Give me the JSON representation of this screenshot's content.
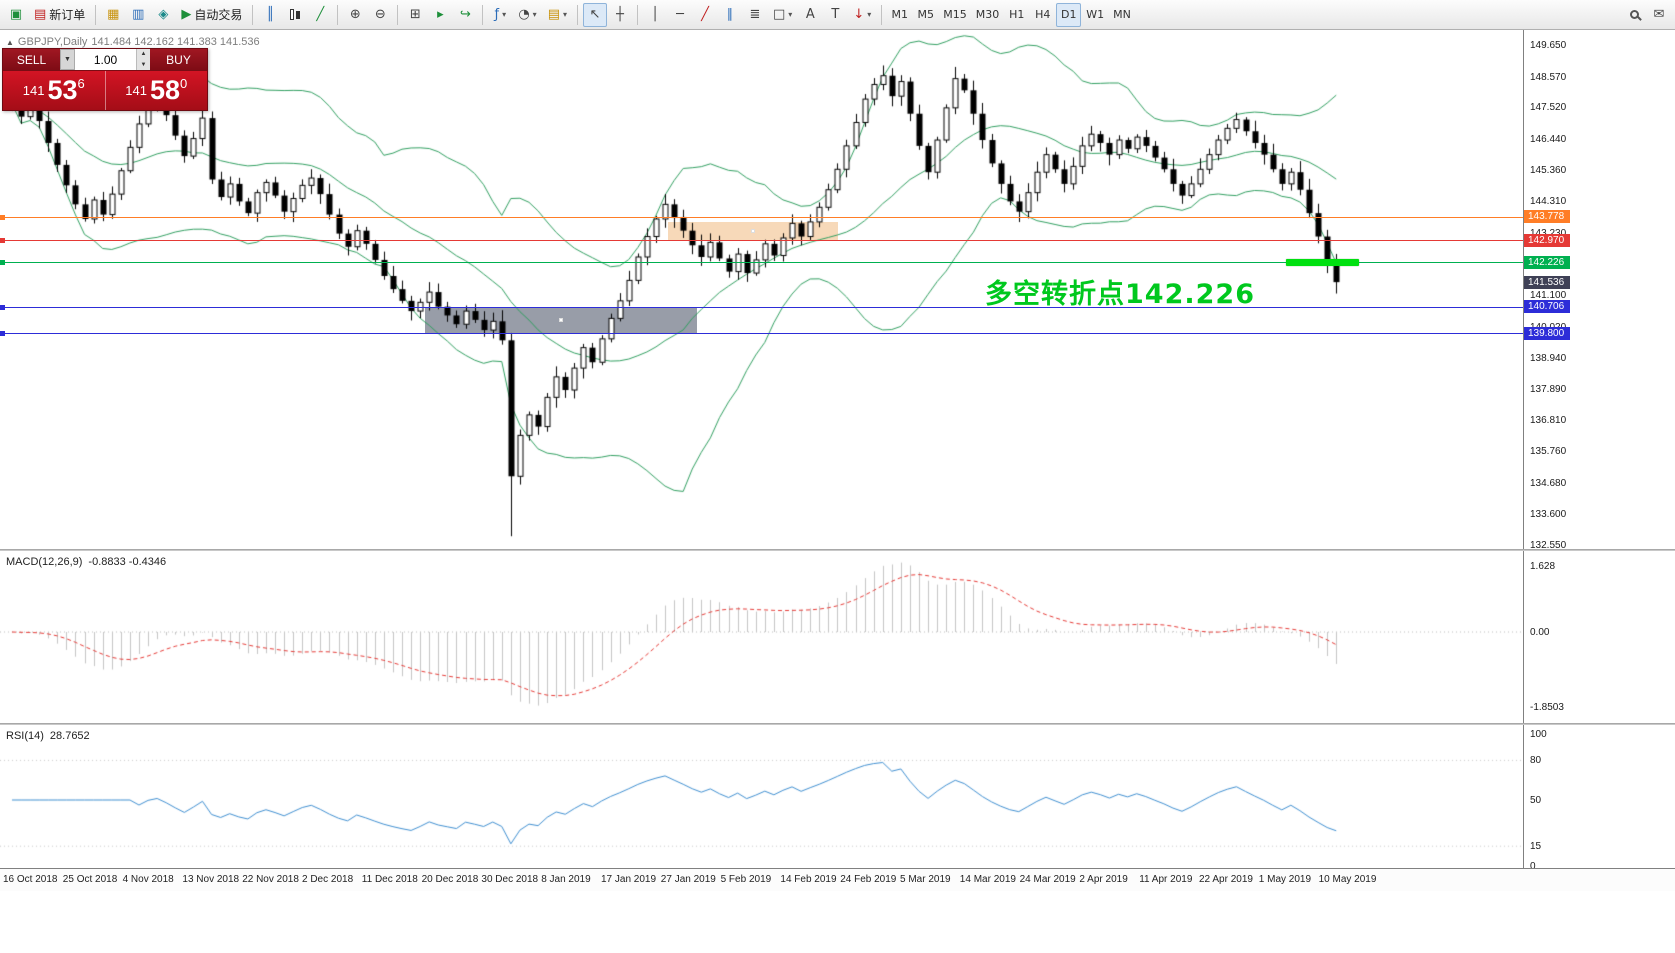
{
  "toolbar": {
    "new_order_label": "新订单",
    "auto_trading_label": "自动交易",
    "timeframes": [
      "M1",
      "M5",
      "M15",
      "M30",
      "H1",
      "H4",
      "D1",
      "W1",
      "MN"
    ],
    "active_timeframe": "D1",
    "text_tool_label": "A",
    "icons": {
      "chart_window": "▣",
      "new_order": "▤",
      "profiles": "▦",
      "market_watch": "▥",
      "navigator": "◈",
      "auto_play": "▶",
      "bar_chart": "║",
      "line_chart": "╱",
      "zoom_in": "⊕",
      "zoom_out": "⊖",
      "tile_windows": "⊞",
      "auto_scroll": "▸",
      "chart_shift": "↪",
      "indicators": "ƒ",
      "periods": "◔",
      "templates": "▤",
      "cursor": "↖",
      "crosshair": "┼",
      "vertical_line": "│",
      "horizontal_line": "─",
      "trendline": "╱",
      "channel": "∥",
      "fibonacci": "≣",
      "shapes": "□",
      "text_label": "T",
      "arrows": "↓",
      "dropdown": "▾",
      "compose": "✉"
    }
  },
  "symbol_bar": {
    "marker": "▲",
    "symbol": "GBPJPY,Daily",
    "ohlc": "141.484 142.162 141.383 141.536"
  },
  "trade_panel": {
    "sell_label": "SELL",
    "buy_label": "BUY",
    "volume": "1.00",
    "dropdown_glyph": "▼",
    "spin_up": "▲",
    "spin_down": "▼",
    "bid": {
      "prefix": "141",
      "big": "53",
      "sup": "6"
    },
    "ask": {
      "prefix": "141",
      "big": "58",
      "sup": "0"
    }
  },
  "annotation": {
    "text": "多空转折点142.226",
    "color": "#00c81e"
  },
  "indicators": {
    "macd": {
      "label": "MACD(12,26,9)",
      "values": "-0.8833 -0.4346",
      "scale_labels": [
        "1.628",
        "0.00",
        "-1.8503"
      ],
      "scale_values": [
        1.628,
        0,
        -1.8503
      ]
    },
    "rsi": {
      "label": "RSI(14)",
      "value": "28.7652",
      "scale_labels": [
        "100",
        "80",
        "50",
        "15",
        "0"
      ],
      "scale_values": [
        100,
        80,
        50,
        15,
        0
      ],
      "level_lines": [
        80,
        15
      ]
    }
  },
  "chart_data": {
    "type": "candlestick",
    "symbol": "GBPJPY",
    "timeframe": "Daily",
    "current_ohlc": {
      "open": 141.484,
      "high": 142.162,
      "low": 141.383,
      "close": 141.536
    },
    "y_axis": {
      "min": 132.55,
      "max": 149.65,
      "ticks": [
        "149.650",
        "148.570",
        "147.520",
        "146.440",
        "145.360",
        "144.310",
        "143.230",
        "142.150",
        "141.100",
        "140.020",
        "138.940",
        "137.890",
        "136.810",
        "135.760",
        "134.680",
        "133.600",
        "132.550"
      ]
    },
    "x_ticks": [
      "16 Oct 2018",
      "25 Oct 2018",
      "4 Nov 2018",
      "13 Nov 2018",
      "22 Nov 2018",
      "2 Dec 2018",
      "11 Dec 2018",
      "20 Dec 2018",
      "30 Dec 2018",
      "8 Jan 2019",
      "17 Jan 2019",
      "27 Jan 2019",
      "5 Feb 2019",
      "14 Feb 2019",
      "24 Feb 2019",
      "5 Mar 2019",
      "14 Mar 2019",
      "24 Mar 2019",
      "2 Apr 2019",
      "11 Apr 2019",
      "22 Apr 2019",
      "1 May 2019",
      "10 May 2019"
    ],
    "closes": [
      147.65,
      147.2,
      147.7,
      147.05,
      146.3,
      145.55,
      144.85,
      144.2,
      143.7,
      144.35,
      143.85,
      144.55,
      145.35,
      146.15,
      146.95,
      147.55,
      147.8,
      147.25,
      146.55,
      145.85,
      146.45,
      147.15,
      145.05,
      144.45,
      144.9,
      144.3,
      143.9,
      144.6,
      144.95,
      144.5,
      143.95,
      144.4,
      144.85,
      145.1,
      144.55,
      143.85,
      143.2,
      142.75,
      143.3,
      142.85,
      142.3,
      141.75,
      141.3,
      140.9,
      140.55,
      140.85,
      141.2,
      140.7,
      140.4,
      140.1,
      140.55,
      140.25,
      139.9,
      140.2,
      139.55,
      134.9,
      136.3,
      137.0,
      136.6,
      137.6,
      138.3,
      137.85,
      138.6,
      139.3,
      138.8,
      139.6,
      140.3,
      140.9,
      141.6,
      142.4,
      143.1,
      143.7,
      144.2,
      143.75,
      143.3,
      142.8,
      142.4,
      142.9,
      142.35,
      141.9,
      142.5,
      141.85,
      142.3,
      142.85,
      142.45,
      143.05,
      143.55,
      143.1,
      143.6,
      144.1,
      144.7,
      145.4,
      146.2,
      147.0,
      147.8,
      148.3,
      148.6,
      147.9,
      148.4,
      147.3,
      146.2,
      145.3,
      146.4,
      147.5,
      148.5,
      148.1,
      147.3,
      146.4,
      145.6,
      144.9,
      144.3,
      143.95,
      144.6,
      145.3,
      145.9,
      145.4,
      144.9,
      145.5,
      146.2,
      146.6,
      146.3,
      145.9,
      146.4,
      146.1,
      146.5,
      146.2,
      145.8,
      145.4,
      144.9,
      144.5,
      144.9,
      145.4,
      145.9,
      146.4,
      146.8,
      147.1,
      146.7,
      146.3,
      145.9,
      145.4,
      144.9,
      145.3,
      144.7,
      143.9,
      143.1,
      142.2,
      141.54
    ],
    "candle_overrides": {
      "55": {
        "low": 132.85,
        "high": 139.8
      },
      "96": {
        "high": 148.95
      },
      "104": {
        "high": 148.9
      },
      "146": {
        "low": 141.15
      }
    },
    "overlays": {
      "bollinger_bands": {
        "period": 20,
        "deviation": 2,
        "color": "#2f9e5f"
      },
      "horizontal_lines": [
        {
          "price": 143.778,
          "color": "#ff7d26",
          "label": "143.778"
        },
        {
          "price": 142.97,
          "color": "#e53935",
          "label": "142.970"
        },
        {
          "price": 142.226,
          "color": "#00b050",
          "label": "142.226"
        },
        {
          "price": 141.536,
          "color": "#3f4156",
          "label": "141.536",
          "badge_only": true
        },
        {
          "price": 140.706,
          "color": "#2d2dd8",
          "label": "140.706"
        },
        {
          "price": 139.8,
          "color": "#2d2dd8",
          "label": "139.800"
        }
      ],
      "zones": [
        {
          "name": "gray-consolidation-zone",
          "from_idx": 45.5,
          "to_idx": 75.5,
          "top_price": 140.706,
          "bottom_price": 139.8,
          "fill": "#9298a3",
          "opacity": 0.95
        },
        {
          "name": "orange-resistance-zone",
          "from_idx": 72.3,
          "to_idx": 91.1,
          "top_price": 143.6,
          "bottom_price": 142.97,
          "fill": "#f7d7b5",
          "opacity": 0.95
        }
      ],
      "highlight_segment": {
        "price": 142.226,
        "from_idx": 140.5,
        "to_idx": 148.5,
        "color": "#00e010",
        "thickness": 7
      }
    },
    "macd": {
      "fast": 12,
      "slow": 26,
      "signal": 9,
      "current": "-0.8833 -0.4346"
    },
    "rsi": {
      "period": 14,
      "current": 28.7652
    }
  }
}
